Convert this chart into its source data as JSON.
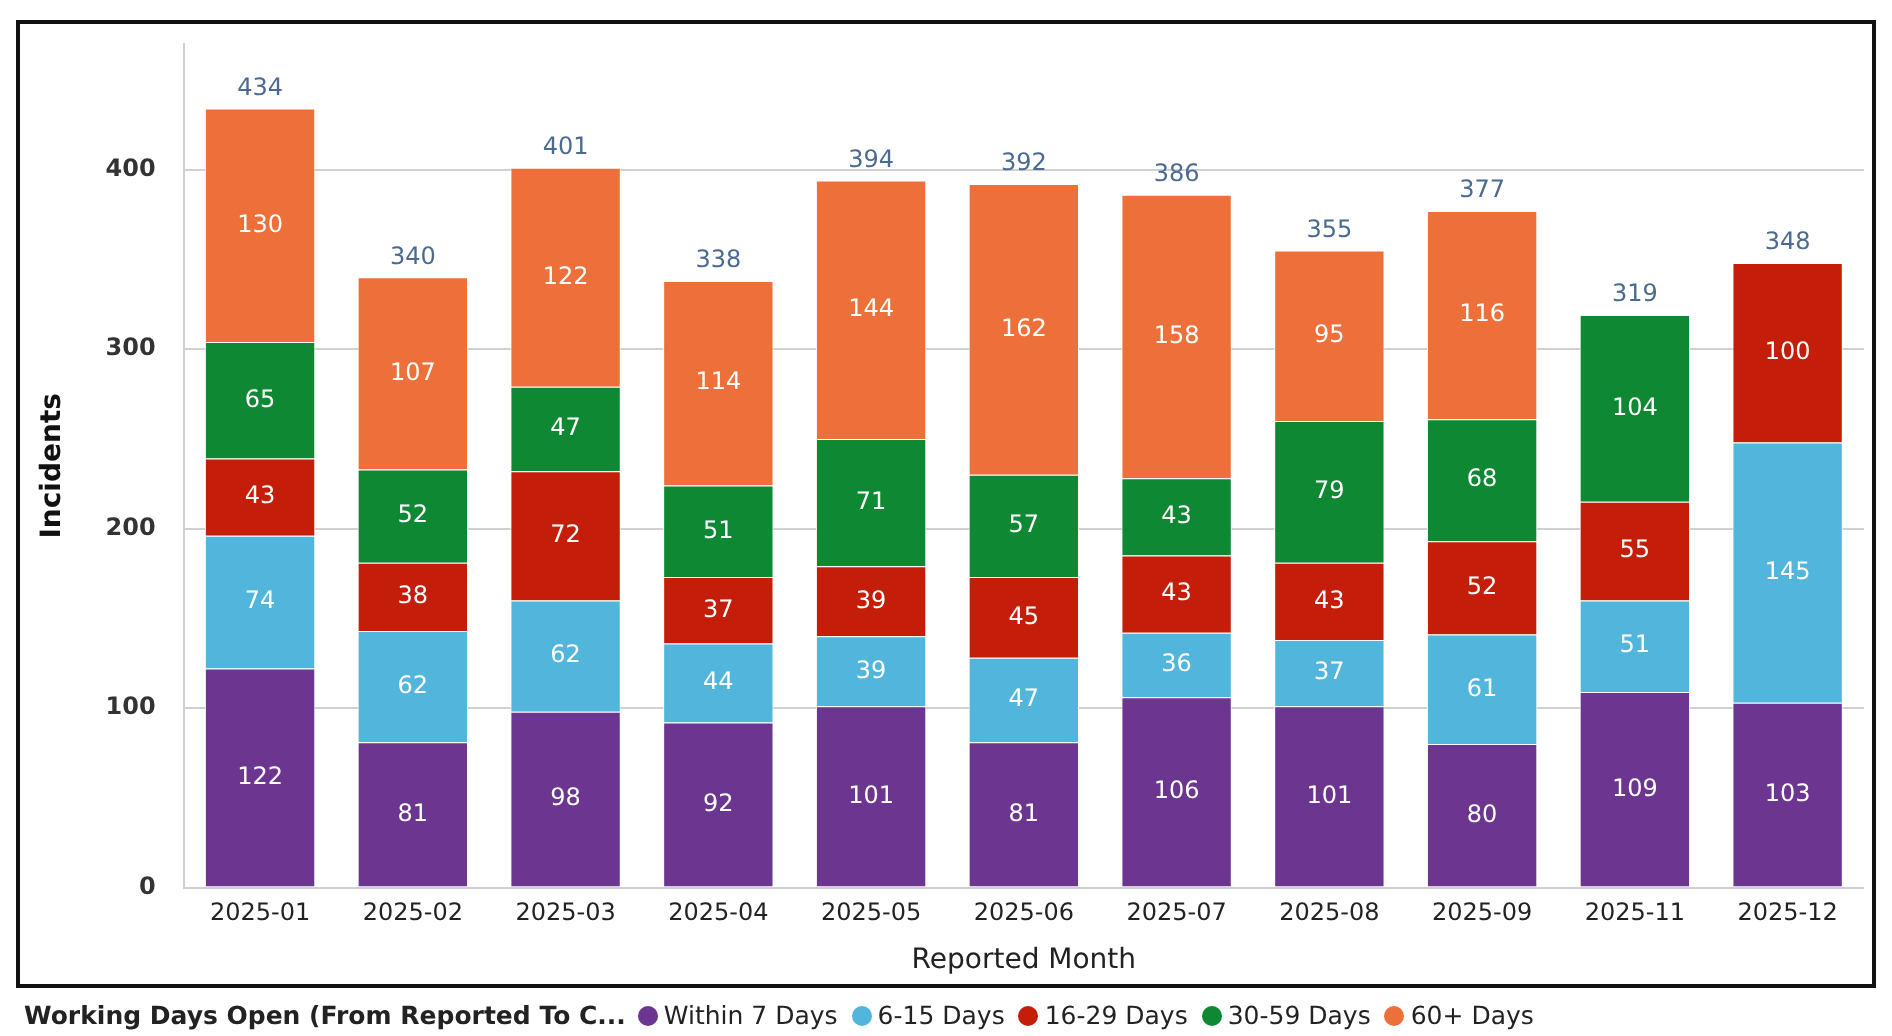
{
  "chart_data": {
    "type": "bar",
    "stacked": true,
    "xlabel": "Reported Month",
    "ylabel": "Incidents",
    "legend_title": "Working Days Open (From Reported To C...",
    "legend": "bottom left",
    "categories": [
      "2025-01",
      "2025-02",
      "2025-03",
      "2025-04",
      "2025-05",
      "2025-06",
      "2025-07",
      "2025-08",
      "2025-09",
      "2025-11",
      "2025-12"
    ],
    "series": [
      {
        "name": "Within 7 Days",
        "color": "#6b3590",
        "values": [
          122,
          81,
          98,
          92,
          101,
          81,
          106,
          101,
          80,
          109,
          103
        ]
      },
      {
        "name": "6-15 Days",
        "color": "#52b6dc",
        "values": [
          74,
          62,
          62,
          44,
          39,
          47,
          36,
          37,
          61,
          51,
          145
        ]
      },
      {
        "name": "16-29 Days",
        "color": "#c41e0a",
        "values": [
          43,
          38,
          72,
          37,
          39,
          45,
          43,
          43,
          52,
          55,
          100
        ]
      },
      {
        "name": "30-59 Days",
        "color": "#0e8833",
        "values": [
          65,
          52,
          47,
          51,
          71,
          57,
          43,
          79,
          68,
          104,
          null
        ]
      },
      {
        "name": "60+ Days",
        "color": "#ed703a",
        "values": [
          130,
          107,
          122,
          114,
          144,
          162,
          158,
          95,
          116,
          null,
          null
        ]
      }
    ],
    "totals": [
      "434",
      "340",
      "401",
      "338",
      "394",
      "392",
      "386",
      "355",
      "377",
      "319",
      "348"
    ],
    "data_labels": true,
    "ylim": [
      0,
      470
    ],
    "yticks": [
      0,
      100,
      200,
      300,
      400
    ],
    "grid": "y"
  }
}
